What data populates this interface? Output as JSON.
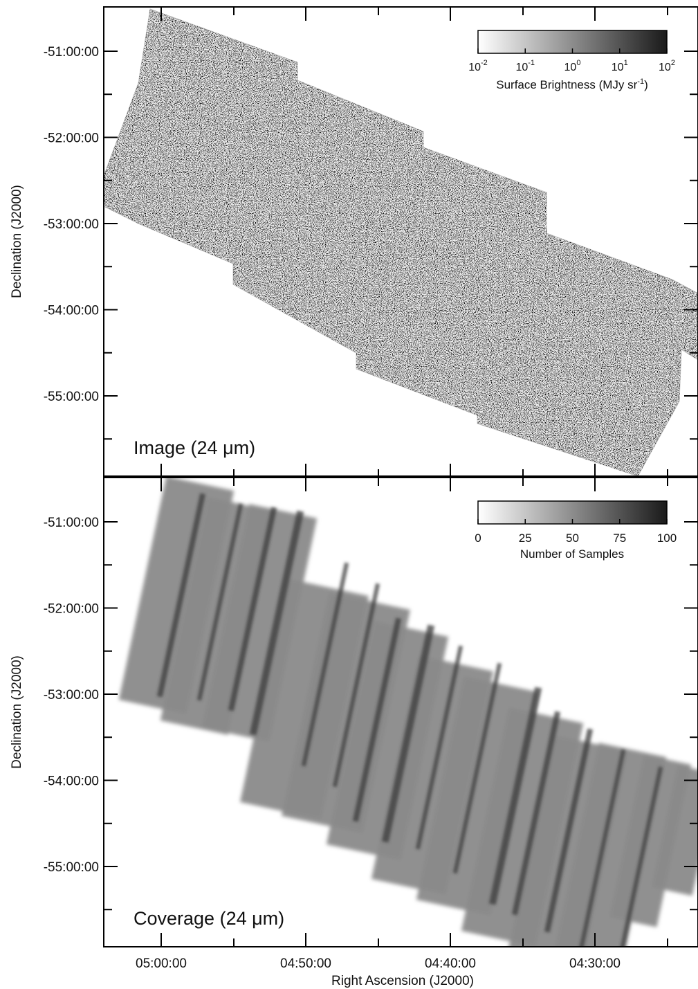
{
  "chart_data": [
    {
      "type": "heatmap",
      "panel": "top",
      "label": "Image (24 μm)",
      "ylabel": "Declination (J2000)",
      "y_ticks": [
        "-51:00:00",
        "-52:00:00",
        "-53:00:00",
        "-54:00:00",
        "-55:00:00"
      ],
      "ylim_deg": [
        -55.9,
        -50.5
      ],
      "colorbar": {
        "title_prefix": "Surface Brightness (MJy sr",
        "title_sup": "-1",
        "title_suffix": ")",
        "scale": "log",
        "ticks": [
          {
            "base": "10",
            "exp": "-2"
          },
          {
            "base": "10",
            "exp": "-1"
          },
          {
            "base": "10",
            "exp": "0"
          },
          {
            "base": "10",
            "exp": "1"
          },
          {
            "base": "10",
            "exp": "2"
          }
        ],
        "range": [
          0.01,
          100
        ]
      },
      "color_low": "#ffffff",
      "color_high": "#1a1a1a"
    },
    {
      "type": "heatmap",
      "panel": "bottom",
      "label": "Coverage (24 μm)",
      "ylabel": "Declination (J2000)",
      "y_ticks": [
        "-51:00:00",
        "-52:00:00",
        "-53:00:00",
        "-54:00:00",
        "-55:00:00"
      ],
      "ylim_deg": [
        -55.9,
        -50.5
      ],
      "xlabel": "Right Ascension (J2000)",
      "x_ticks": [
        "05:00:00",
        "04:50:00",
        "04:40:00",
        "04:30:00"
      ],
      "colorbar": {
        "title": "Number of Samples",
        "scale": "linear",
        "ticks": [
          "0",
          "25",
          "50",
          "75",
          "100"
        ],
        "range": [
          0,
          100
        ]
      },
      "color_low": "#ffffff",
      "color_high": "#1a1a1a",
      "swath_color": "#8a8a8a",
      "stripe_color": "#3a3a3a"
    }
  ]
}
